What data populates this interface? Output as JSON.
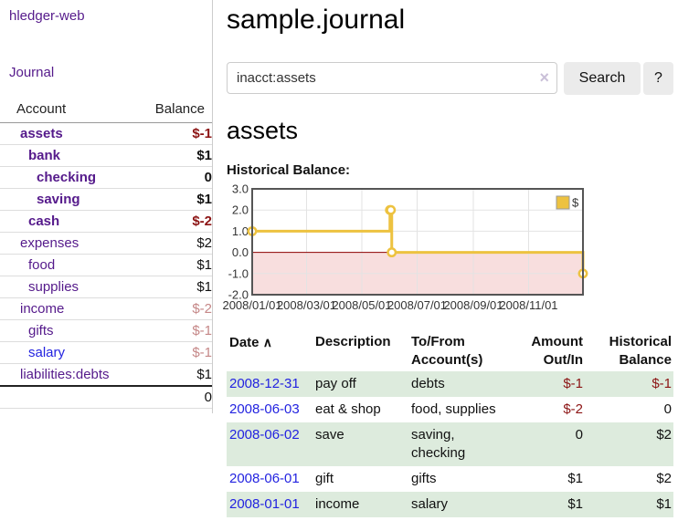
{
  "sidebar": {
    "brand": "hledger-web",
    "nav": {
      "journal": "Journal"
    },
    "accounts_table": {
      "col_account": "Account",
      "col_balance": "Balance",
      "rows": [
        {
          "name": "assets",
          "depth": 1,
          "bold": true,
          "balance": "$-1"
        },
        {
          "name": "bank",
          "depth": 2,
          "bold": true,
          "balance": "$1"
        },
        {
          "name": "checking",
          "depth": 3,
          "bold": true,
          "balance": "0"
        },
        {
          "name": "saving",
          "depth": 3,
          "bold": true,
          "balance": "$1"
        },
        {
          "name": "cash",
          "depth": 2,
          "bold": true,
          "balance": "$-2"
        },
        {
          "name": "expenses",
          "depth": 1,
          "bold": false,
          "balance": "$2"
        },
        {
          "name": "food",
          "depth": 2,
          "bold": false,
          "balance": "$1"
        },
        {
          "name": "supplies",
          "depth": 2,
          "bold": false,
          "balance": "$1"
        },
        {
          "name": "income",
          "depth": 1,
          "bold": false,
          "balance": "$-2"
        },
        {
          "name": "gifts",
          "depth": 2,
          "bold": false,
          "balance": "$-1"
        },
        {
          "name": "salary",
          "depth": 2,
          "bold": false,
          "unvisited": true,
          "balance": "$-1"
        },
        {
          "name": "liabilities:debts",
          "depth": 1,
          "bold": false,
          "balance": "$1"
        }
      ],
      "total": "0"
    }
  },
  "header": {
    "title": "sample.journal"
  },
  "search": {
    "value": "inacct:assets",
    "clear_icon": "×",
    "search_button": "Search",
    "help_button": "?"
  },
  "account_view": {
    "heading": "assets",
    "chart_title": "Historical Balance:"
  },
  "chart_data": {
    "type": "line",
    "step": true,
    "title": "Historical Balance:",
    "series": [
      {
        "name": "$",
        "color": "#edc240",
        "points": [
          [
            "2008-01-01",
            1
          ],
          [
            "2008-06-01",
            2
          ],
          [
            "2008-06-02",
            2
          ],
          [
            "2008-06-03",
            0
          ],
          [
            "2008-12-31",
            -1
          ]
        ]
      }
    ],
    "x_range": [
      "2008-01-01",
      "2008-12-31"
    ],
    "ylim": [
      -2,
      3
    ],
    "y_ticks": [
      {
        "label": "3.0",
        "value": 3
      },
      {
        "label": "2.0",
        "value": 2
      },
      {
        "label": "1.0",
        "value": 1
      },
      {
        "label": "0.0",
        "value": 0
      },
      {
        "label": "-1.0",
        "value": -1
      },
      {
        "label": "-2.0",
        "value": -2
      }
    ],
    "x_ticks": [
      {
        "label": "2008/01/01",
        "date": "2008-01-01"
      },
      {
        "label": "2008/03/01",
        "date": "2008-03-01"
      },
      {
        "label": "2008/05/01",
        "date": "2008-05-01"
      },
      {
        "label": "2008/07/01",
        "date": "2008-07-01"
      },
      {
        "label": "2008/09/01",
        "date": "2008-09-01"
      },
      {
        "label": "2008/11/01",
        "date": "2008-11-01"
      }
    ],
    "legend": {
      "label": "$",
      "position": "top-right"
    },
    "grid": true,
    "negative_region_color": "#f8dede",
    "zero_line_color": "#8b0000"
  },
  "register": {
    "columns": {
      "date": "Date",
      "sort_icon": "∧",
      "description": "Description",
      "accounts": "To/From Account(s)",
      "amount": "Amount Out/In",
      "balance": "Historical Balance"
    },
    "rows": [
      {
        "date": "2008-12-31",
        "description": "pay off",
        "accounts": "debts",
        "amount": "$-1",
        "balance": "$-1"
      },
      {
        "date": "2008-06-03",
        "description": "eat & shop",
        "accounts": "food, supplies",
        "amount": "$-2",
        "balance": "0"
      },
      {
        "date": "2008-06-02",
        "description": "save",
        "accounts": "saving, checking",
        "amount": "0",
        "balance": "$2"
      },
      {
        "date": "2008-06-01",
        "description": "gift",
        "accounts": "gifts",
        "amount": "$1",
        "balance": "$2"
      },
      {
        "date": "2008-01-01",
        "description": "income",
        "accounts": "salary",
        "amount": "$1",
        "balance": "$1"
      }
    ]
  },
  "colors": {
    "accent_purple": "#551a8b",
    "link_blue": "#2323e0",
    "negative_strong": "#8c1414",
    "negative_soft": "#c58787",
    "row_stripe_green": "#ddebdd",
    "chart_gold": "#edc240",
    "chart_negative_fill": "#f8dede",
    "chart_zero_line": "#8b0000"
  }
}
